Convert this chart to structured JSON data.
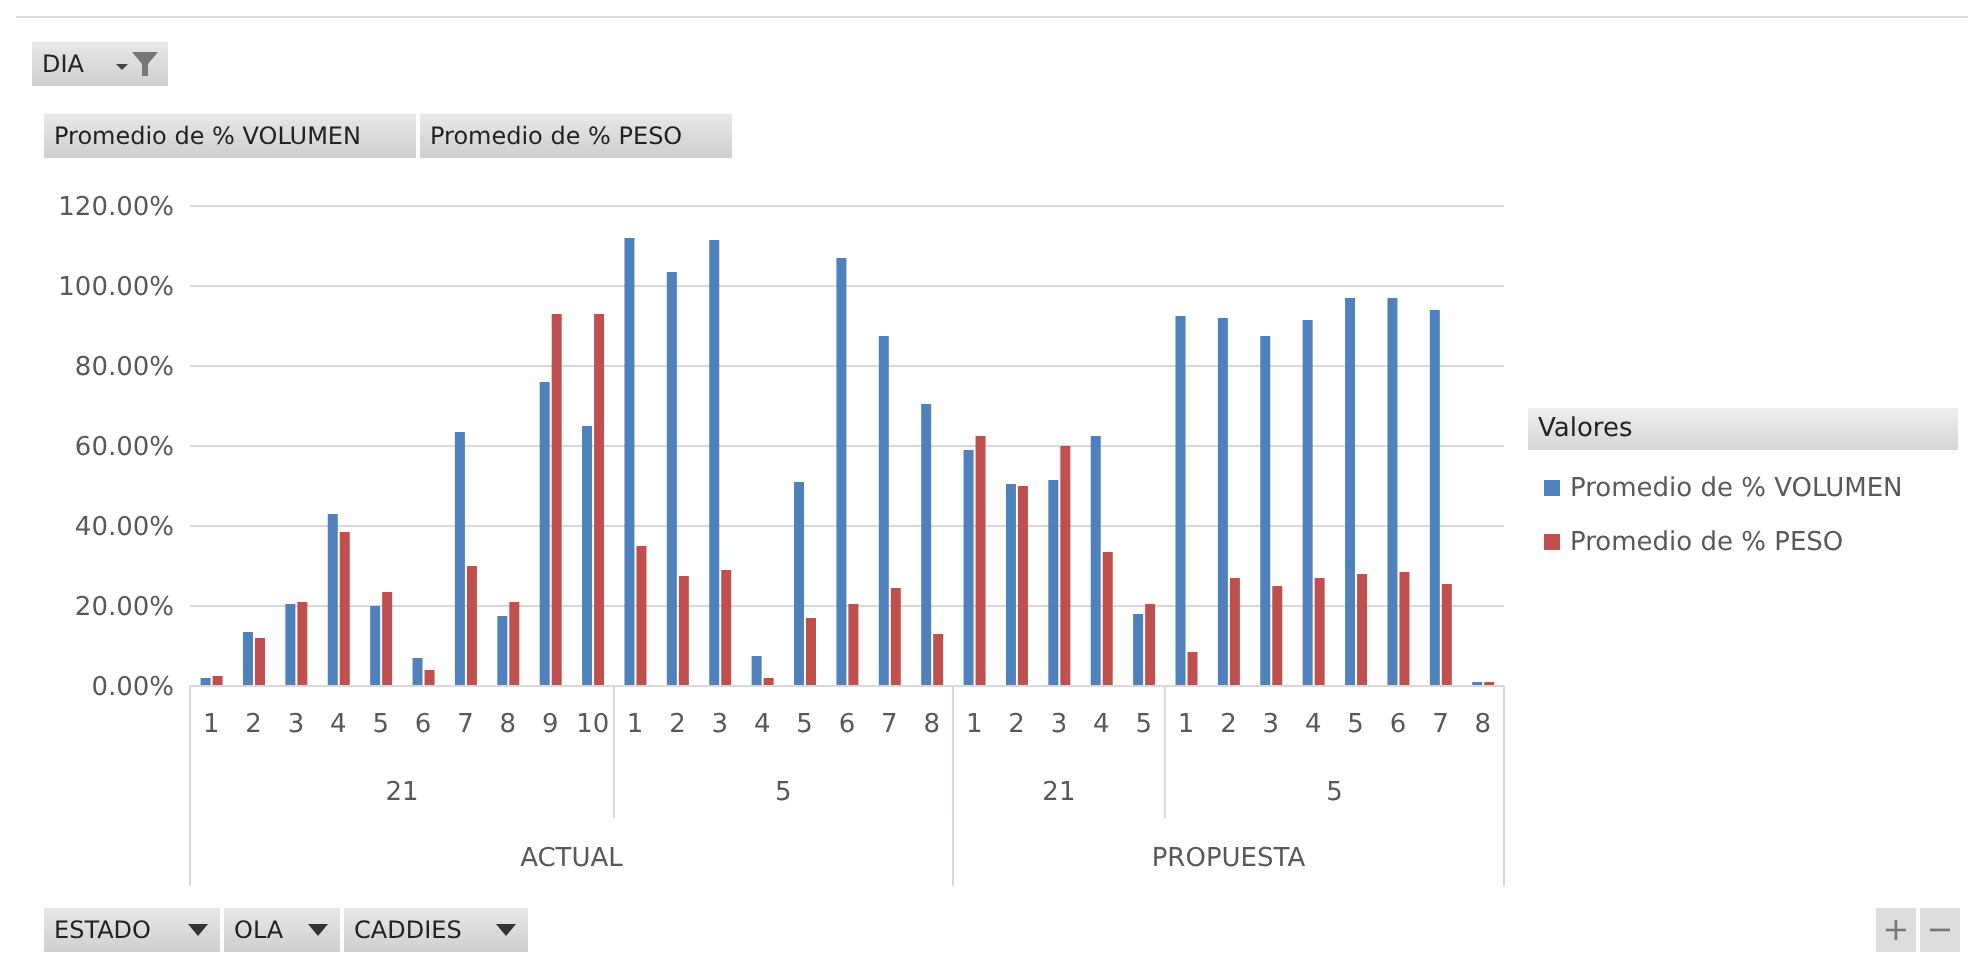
{
  "chart_data": {
    "type": "bar",
    "categories": [
      "1",
      "2",
      "3",
      "4",
      "5",
      "6",
      "7",
      "8",
      "9",
      "10",
      "1",
      "2",
      "3",
      "4",
      "5",
      "6",
      "7",
      "8",
      "1",
      "2",
      "3",
      "4",
      "5",
      "1",
      "2",
      "3",
      "4",
      "5",
      "6",
      "7",
      "8"
    ],
    "series": [
      {
        "name": "Promedio de % VOLUMEN",
        "color": "#4f81bd",
        "values": [
          2,
          13.5,
          20.5,
          43,
          20,
          7,
          63.5,
          17.5,
          76,
          65,
          112,
          103.5,
          111.5,
          7.5,
          51,
          107,
          87.5,
          70.5,
          59,
          50.5,
          51.5,
          62.5,
          18,
          92.5,
          92,
          87.5,
          91.5,
          97,
          97,
          94,
          0.5
        ]
      },
      {
        "name": "Promedio de % PESO",
        "color": "#c0504d",
        "values": [
          2.5,
          12,
          21,
          38.5,
          23.5,
          4,
          30,
          21,
          93,
          93,
          35,
          27.5,
          29,
          2,
          17,
          20.5,
          24.5,
          13,
          62.5,
          50,
          60,
          33.5,
          20.5,
          8.5,
          27,
          25,
          27,
          28,
          28.5,
          25.5,
          0.5
        ]
      }
    ],
    "ylim": [
      0,
      120
    ],
    "yticks": [
      {
        "value": 0,
        "label": "0.00%"
      },
      {
        "value": 20,
        "label": "20.00%"
      },
      {
        "value": 40,
        "label": "40.00%"
      },
      {
        "value": 60,
        "label": "60.00%"
      },
      {
        "value": 80,
        "label": "80.00%"
      },
      {
        "value": 100,
        "label": "100.00%"
      },
      {
        "value": 120,
        "label": "120.00%"
      }
    ],
    "grid": "y",
    "legend": "right",
    "legend_title": "Valores",
    "annotations": [
      "DIA",
      "Promedio de % VOLUMEN",
      "Promedio de % PESO",
      "ESTADO",
      "OLA",
      "CADDIES",
      "+",
      "−",
      "21",
      "5",
      "21",
      "5",
      "ACTUAL",
      "PROPUESTA"
    ]
  }
}
